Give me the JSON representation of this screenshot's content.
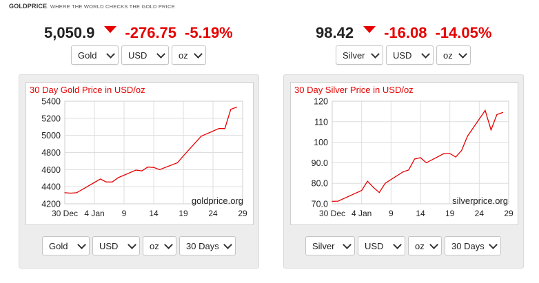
{
  "brand": {
    "name": "GOLDPRICE",
    "tagline": ". WHERE THE WORLD CHECKS THE GOLD PRICE"
  },
  "colors": {
    "accent_red": "#e60000",
    "panel_bg": "#ededed"
  },
  "gold": {
    "price": "5,050.9",
    "change": "-276.75",
    "change_pct": "-5.19%",
    "direction_icon": "down-triangle-icon",
    "selects": {
      "metal": "Gold",
      "currency": "USD",
      "unit": "oz"
    },
    "bottom_selects": {
      "metal": "Gold",
      "currency": "USD",
      "unit": "oz",
      "range": "30 Days"
    },
    "watermark": "goldprice.org"
  },
  "silver": {
    "price": "98.42",
    "change": "-16.08",
    "change_pct": "-14.05%",
    "direction_icon": "down-triangle-icon",
    "selects": {
      "metal": "Silver",
      "currency": "USD",
      "unit": "oz"
    },
    "bottom_selects": {
      "metal": "Silver",
      "currency": "USD",
      "unit": "oz",
      "range": "30 Days"
    },
    "watermark": "silverprice.org"
  },
  "chart_data": [
    {
      "type": "line",
      "title": "30 Day Gold Price in USD/oz",
      "xlabel": "",
      "ylabel": "",
      "x_ticks": [
        "30 Dec",
        "4 Jan",
        "9",
        "14",
        "19",
        "24",
        "29"
      ],
      "y_ticks": [
        4200,
        4400,
        4600,
        4800,
        5000,
        5200,
        5400
      ],
      "ylim": [
        4200,
        5400
      ],
      "x_day_range": [
        0,
        30
      ],
      "grid": true,
      "series": [
        {
          "color": "#e60000",
          "x": [
            0,
            1,
            2,
            5,
            6,
            7,
            8,
            9,
            12,
            13,
            14,
            15,
            16,
            19,
            20,
            23,
            26,
            27,
            28,
            29
          ],
          "y": [
            4330,
            4325,
            4330,
            4450,
            4490,
            4455,
            4455,
            4505,
            4595,
            4585,
            4630,
            4625,
            4600,
            4680,
            4760,
            4990,
            5080,
            5080,
            5305,
            5330
          ]
        }
      ]
    },
    {
      "type": "line",
      "title": "30 Day Silver Price in USD/oz",
      "xlabel": "",
      "ylabel": "",
      "x_ticks": [
        "30 Dec",
        "4 Jan",
        "9",
        "14",
        "19",
        "24",
        "29"
      ],
      "y_ticks": [
        "70.0",
        "80.0",
        "90.0",
        "100",
        "110",
        "120"
      ],
      "ylim": [
        70,
        120
      ],
      "x_day_range": [
        0,
        30
      ],
      "grid": true,
      "series": [
        {
          "color": "#e60000",
          "x": [
            0,
            1,
            5,
            6,
            7,
            8,
            9,
            12,
            13,
            14,
            15,
            16,
            19,
            20,
            21,
            22,
            23,
            26,
            27,
            28,
            29
          ],
          "y": [
            71.2,
            71.3,
            76.5,
            81.0,
            78.0,
            75.5,
            80.0,
            85.5,
            86.5,
            91.8,
            92.5,
            90.0,
            94.5,
            94.5,
            92.8,
            96.0,
            103.0,
            115.5,
            106.0,
            113.5,
            114.5
          ]
        }
      ]
    }
  ]
}
